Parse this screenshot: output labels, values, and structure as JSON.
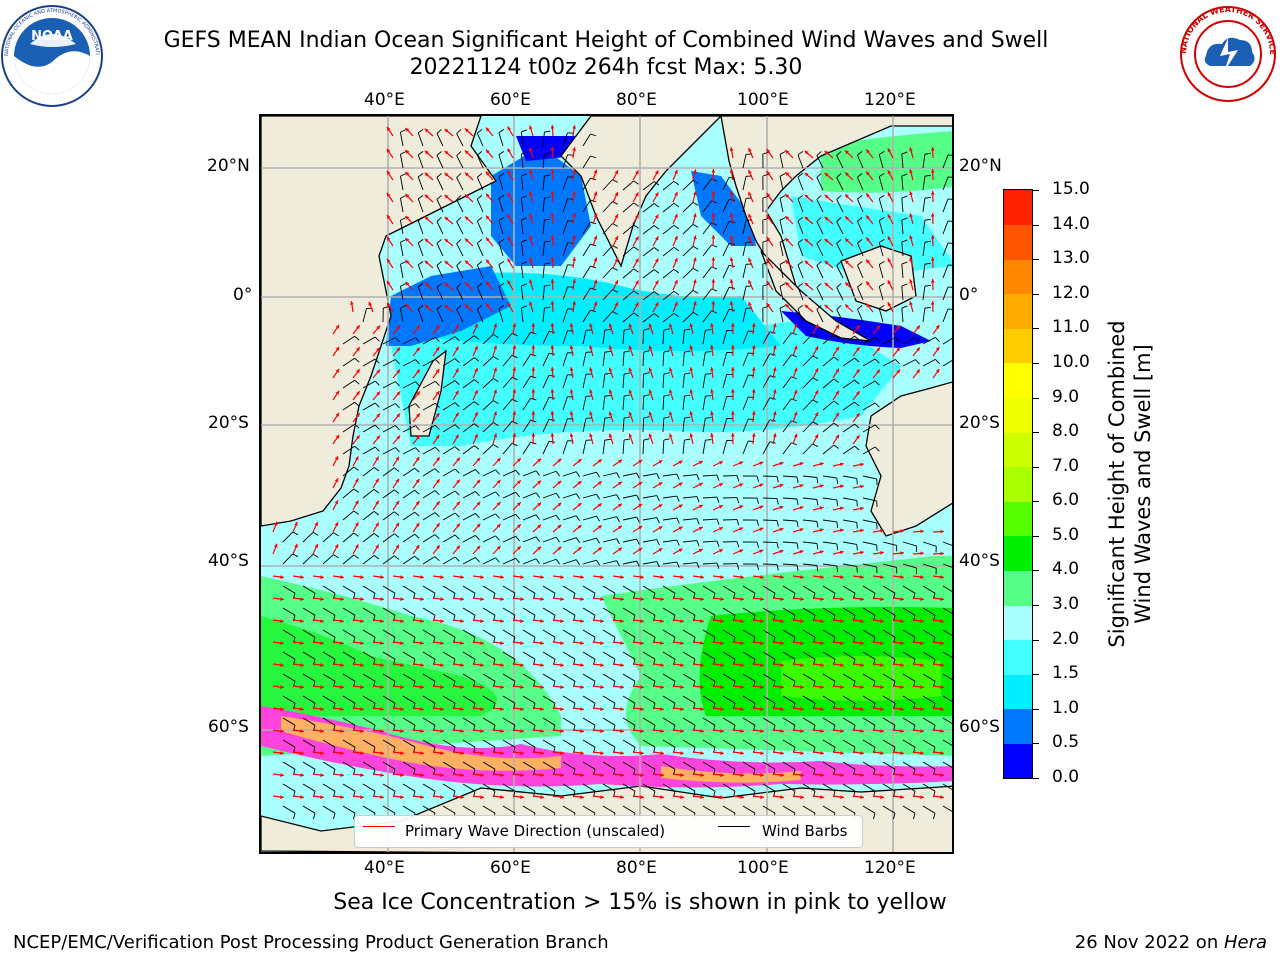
{
  "header": {
    "title_line1": "GEFS MEAN Indian Ocean Significant Height of Combined Wind Waves and Swell",
    "title_line2": "20221124 t00z 264h fcst   Max: 5.30"
  },
  "logos": {
    "left": {
      "icon": "noaa-logo-icon",
      "text": "NOAA",
      "ring_text": "NATIONAL OCEANIC AND ATMOSPHERIC ADMINISTRATION · U.S. DEPARTMENT OF COMMERCE"
    },
    "right": {
      "icon": "nws-logo-icon",
      "ring_text": "NATIONAL WEATHER SERVICE"
    }
  },
  "map": {
    "lon_ticks_top": [
      "40°E",
      "60°E",
      "80°E",
      "100°E",
      "120°E"
    ],
    "lon_ticks_bottom": [
      "40°E",
      "60°E",
      "80°E",
      "100°E",
      "120°E"
    ],
    "lat_ticks_left": [
      "20°N",
      "0°",
      "20°S",
      "40°S",
      "60°S"
    ],
    "lat_ticks_right": [
      "20°N",
      "0°",
      "20°S",
      "40°S",
      "60°S"
    ],
    "colors": {
      "land": "#efecdc",
      "ice_pink": "#ff44dd",
      "ice_orange": "#ffb060",
      "wave_arrow": "#ff0000",
      "wind_barb": "#000000"
    }
  },
  "legend": {
    "wave_label": "Primary Wave Direction (unscaled)",
    "wind_label": "Wind Barbs"
  },
  "colorbar": {
    "title_line1": "Significant Height of Combined",
    "title_line2": "Wind Waves and Swell [m]",
    "ticks": [
      "0.0",
      "0.5",
      "1.0",
      "1.5",
      "2.0",
      "3.0",
      "4.0",
      "5.0",
      "6.0",
      "7.0",
      "8.0",
      "9.0",
      "10.0",
      "11.0",
      "12.0",
      "13.0",
      "14.0",
      "15.0"
    ],
    "colors": [
      "#0000ff",
      "#0077ff",
      "#00eeff",
      "#44ffff",
      "#aaffff",
      "#55ff88",
      "#00ee00",
      "#55ff00",
      "#aaff00",
      "#ccff00",
      "#eeff00",
      "#ffff00",
      "#ffcc00",
      "#ffaa00",
      "#ff8800",
      "#ff5500",
      "#ff2200"
    ]
  },
  "footer": {
    "subtitle": "Sea Ice Concentration > 15% is shown in pink to yellow",
    "left": "NCEP/EMC/Verification Post Processing Product Generation Branch",
    "right_date": "26 Nov 2022 on ",
    "right_host": "Hera"
  }
}
